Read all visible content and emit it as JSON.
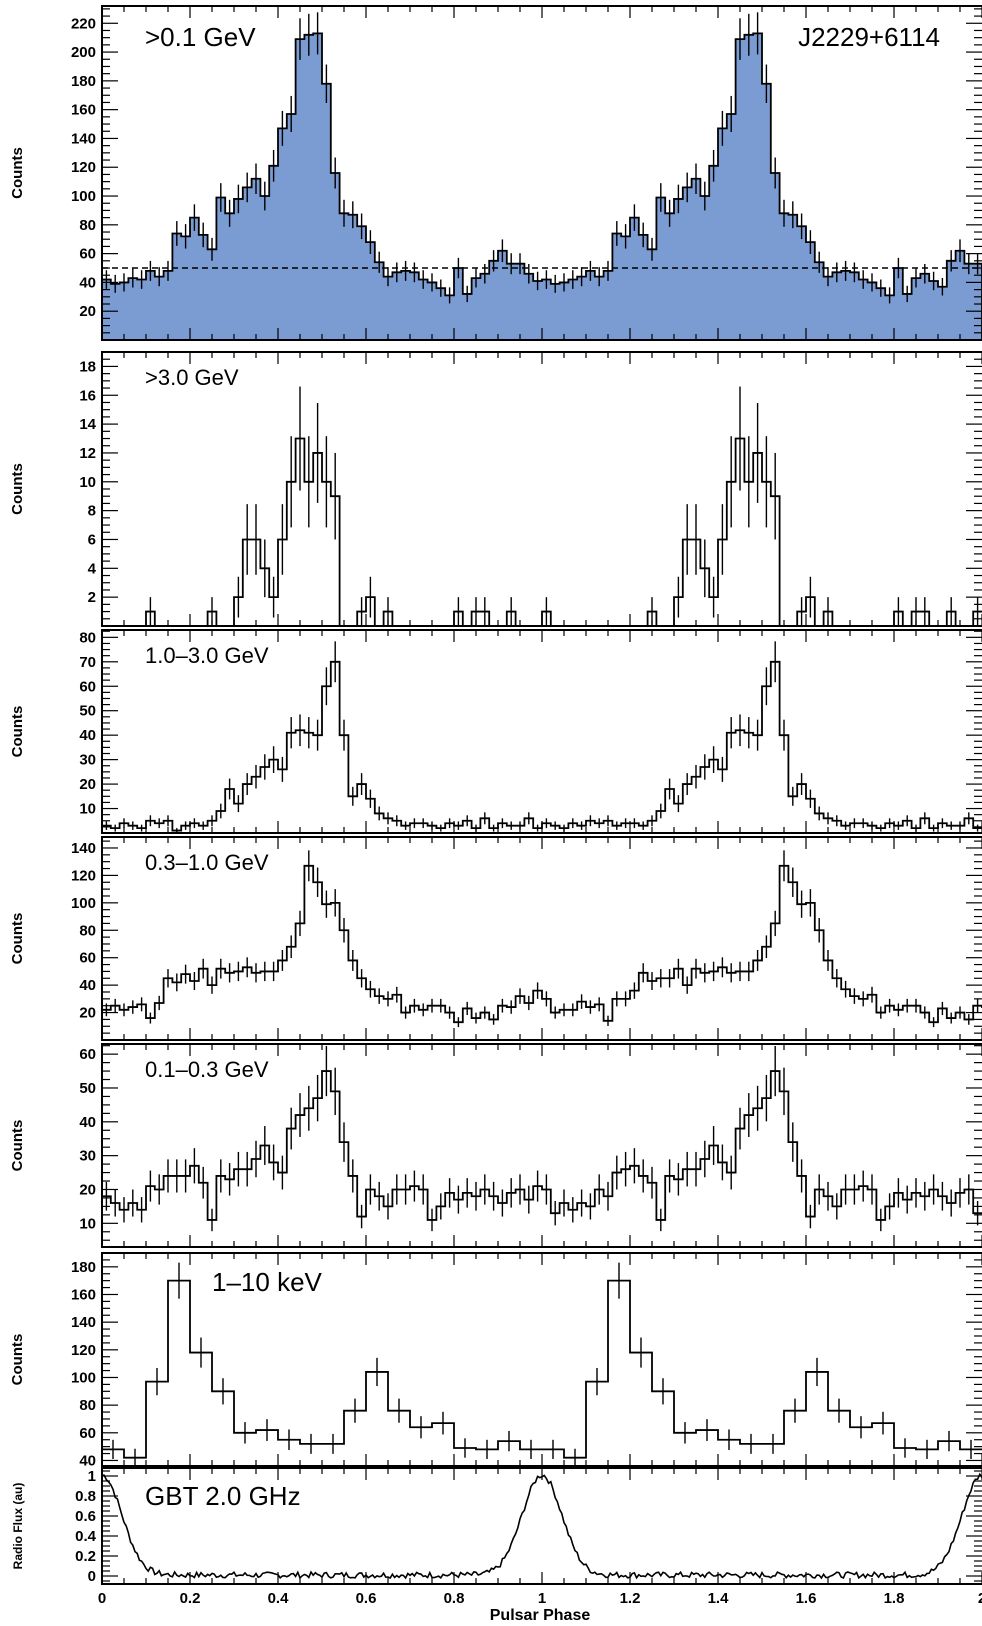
{
  "chart_data": [
    {
      "type": "bar",
      "style": "histogram-filled",
      "label": ">0.1 GeV",
      "source_label": "J2229+6114",
      "ylabel": "Counts",
      "ylim": [
        0,
        232
      ],
      "yticks": [
        20,
        40,
        60,
        80,
        100,
        120,
        140,
        160,
        180,
        200,
        220
      ],
      "background_level": 50,
      "x_start": 0,
      "bin_width": 0.02,
      "values": [
        42,
        39,
        40,
        43,
        42,
        48,
        44,
        48,
        74,
        72,
        85,
        73,
        63,
        99,
        88,
        98,
        106,
        112,
        100,
        121,
        147,
        157,
        209,
        212,
        213,
        178,
        116,
        88,
        87,
        79,
        68,
        54,
        44,
        47,
        48,
        47,
        42,
        40,
        36,
        31,
        50,
        32,
        43,
        46,
        55,
        62,
        53,
        53,
        46,
        41,
        42,
        39,
        40,
        42,
        44,
        48,
        44,
        48,
        74,
        72,
        85,
        73,
        63,
        99,
        88,
        98,
        106,
        112,
        100,
        121,
        147,
        157,
        209,
        212,
        213,
        178,
        116,
        88,
        87,
        79,
        68,
        54,
        44,
        47,
        48,
        47,
        42,
        40,
        36,
        31,
        50,
        32,
        43,
        46,
        41,
        37,
        55,
        62,
        53,
        53
      ],
      "frame_color": "#000000",
      "fill_color": "#7b9bd3"
    },
    {
      "type": "bar",
      "style": "histogram",
      "label": ">3.0 GeV",
      "ylabel": "Counts",
      "ylim": [
        0,
        19
      ],
      "yticks": [
        2,
        4,
        6,
        8,
        10,
        12,
        14,
        16,
        18
      ],
      "x_start": 0,
      "bin_width": 0.02,
      "values": [
        0,
        0,
        0,
        0,
        0,
        1,
        0,
        0,
        0,
        0,
        0,
        0,
        1,
        0,
        0,
        2,
        6,
        6,
        4,
        2,
        6,
        10,
        13,
        10,
        12,
        10,
        9,
        0,
        0,
        1,
        2,
        0,
        1,
        0,
        0,
        0,
        0,
        0,
        0,
        0,
        1,
        0,
        1,
        1,
        0,
        0,
        1,
        0,
        0,
        0,
        1,
        0,
        0,
        0,
        0,
        0,
        0,
        0,
        0,
        0,
        0,
        0,
        1,
        0,
        0,
        2,
        6,
        6,
        4,
        2,
        6,
        10,
        13,
        10,
        12,
        10,
        9,
        0,
        0,
        1,
        2,
        0,
        1,
        0,
        0,
        0,
        0,
        0,
        0,
        0,
        1,
        0,
        1,
        1,
        0,
        0,
        1,
        0,
        0,
        1
      ],
      "frame_color": "#000000"
    },
    {
      "type": "bar",
      "style": "histogram",
      "label": "1.0–3.0 GeV",
      "ylabel": "Counts",
      "ylim": [
        0,
        83
      ],
      "yticks": [
        10,
        20,
        30,
        40,
        50,
        60,
        70,
        80
      ],
      "x_start": 0,
      "bin_width": 0.02,
      "values": [
        3,
        2,
        4,
        3,
        2,
        5,
        4,
        5,
        1,
        3,
        4,
        3,
        5,
        9,
        18,
        12,
        20,
        23,
        27,
        30,
        26,
        41,
        42,
        41,
        40,
        60,
        70,
        40,
        15,
        20,
        14,
        8,
        6,
        5,
        3,
        4,
        4,
        3,
        2,
        4,
        3,
        5,
        2,
        6,
        2,
        4,
        3,
        3,
        6,
        2,
        4,
        3,
        2,
        4,
        3,
        5,
        4,
        5,
        3,
        4,
        4,
        3,
        5,
        9,
        18,
        12,
        20,
        23,
        27,
        30,
        26,
        41,
        42,
        41,
        40,
        60,
        70,
        40,
        15,
        20,
        14,
        8,
        6,
        5,
        3,
        4,
        4,
        3,
        2,
        4,
        3,
        5,
        2,
        6,
        2,
        4,
        3,
        3,
        6,
        2
      ],
      "frame_color": "#000000"
    },
    {
      "type": "bar",
      "style": "histogram",
      "label": "0.3–1.0 GeV",
      "ylabel": "Counts",
      "ylim": [
        0,
        148
      ],
      "yticks": [
        20,
        40,
        60,
        80,
        100,
        120,
        140
      ],
      "x_start": 0,
      "bin_width": 0.02,
      "values": [
        22,
        25,
        22,
        24,
        26,
        16,
        27,
        45,
        42,
        48,
        43,
        52,
        40,
        52,
        49,
        50,
        53,
        49,
        50,
        50,
        58,
        68,
        85,
        127,
        115,
        99,
        100,
        80,
        58,
        45,
        37,
        32,
        30,
        33,
        20,
        25,
        22,
        25,
        25,
        20,
        13,
        23,
        16,
        20,
        15,
        25,
        24,
        32,
        27,
        36,
        30,
        20,
        22,
        22,
        28,
        24,
        26,
        14,
        30,
        30,
        36,
        49,
        43,
        45,
        45,
        52,
        40,
        52,
        49,
        50,
        53,
        49,
        50,
        50,
        58,
        68,
        85,
        127,
        115,
        99,
        100,
        80,
        58,
        45,
        37,
        32,
        30,
        33,
        20,
        25,
        22,
        25,
        25,
        20,
        13,
        23,
        16,
        20,
        15,
        25,
        24,
        32,
        27,
        36
      ],
      "frame_color": "#000000"
    },
    {
      "type": "bar",
      "style": "histogram",
      "label": "0.1–0.3 GeV",
      "ylabel": "Counts",
      "ylim": [
        3,
        63
      ],
      "yticks": [
        10,
        20,
        30,
        40,
        50,
        60
      ],
      "x_start": 0,
      "bin_width": 0.02,
      "values": [
        18,
        16,
        14,
        16,
        14,
        21,
        20,
        24,
        24,
        24,
        27,
        22,
        11,
        24,
        23,
        26,
        26,
        29,
        33,
        28,
        25,
        38,
        42,
        44,
        47,
        55,
        49,
        34,
        24,
        12,
        20,
        18,
        15,
        20,
        20,
        21,
        20,
        11,
        15,
        19,
        17,
        19,
        18,
        20,
        18,
        16,
        19,
        20,
        17,
        21,
        20,
        13,
        16,
        14,
        16,
        15,
        20,
        18,
        25,
        26,
        27,
        24,
        22,
        11,
        24,
        23,
        26,
        26,
        29,
        33,
        28,
        25,
        38,
        42,
        44,
        47,
        55,
        49,
        34,
        24,
        12,
        20,
        18,
        15,
        20,
        20,
        21,
        20,
        11,
        15,
        19,
        17,
        19,
        18,
        20,
        18,
        16,
        19,
        20,
        13
      ],
      "frame_color": "#000000"
    },
    {
      "type": "bar",
      "style": "histogram",
      "label": "1–10 keV",
      "ylabel": "Counts",
      "ylim": [
        36,
        190
      ],
      "yticks": [
        40,
        60,
        80,
        100,
        120,
        140,
        160,
        180
      ],
      "x_start": 0,
      "bin_width": 0.05,
      "values": [
        48,
        42,
        97,
        170,
        118,
        90,
        60,
        62,
        55,
        52,
        52,
        76,
        104,
        76,
        64,
        67,
        49,
        48,
        54,
        48,
        48,
        42,
        97,
        170,
        118,
        90,
        60,
        62,
        55,
        52,
        52,
        76,
        104,
        76,
        64,
        67,
        49,
        48,
        54,
        48
      ],
      "frame_color": "#000000"
    },
    {
      "type": "line",
      "label": "GBT 2.0 GHz",
      "ylabel": "Radio Flux (au)",
      "xlabel": "Pulsar Phase",
      "ylim": [
        -0.08,
        1.08
      ],
      "yticks": [
        0,
        0.2,
        0.4,
        0.6,
        0.8,
        1
      ],
      "xlim": [
        0,
        2
      ],
      "xticks": [
        0,
        0.2,
        0.4,
        0.6,
        0.8,
        1,
        1.2,
        1.4,
        1.6,
        1.8,
        2
      ],
      "xtick_labels": [
        "0",
        "0.2",
        "0.4",
        "0.6",
        "0.8",
        "1",
        "1.2",
        "1.4",
        "1.6",
        "1.8",
        "2"
      ],
      "peak_phases": [
        0,
        1,
        2
      ],
      "peak_width": 0.045,
      "baseline": 0.01
    }
  ]
}
